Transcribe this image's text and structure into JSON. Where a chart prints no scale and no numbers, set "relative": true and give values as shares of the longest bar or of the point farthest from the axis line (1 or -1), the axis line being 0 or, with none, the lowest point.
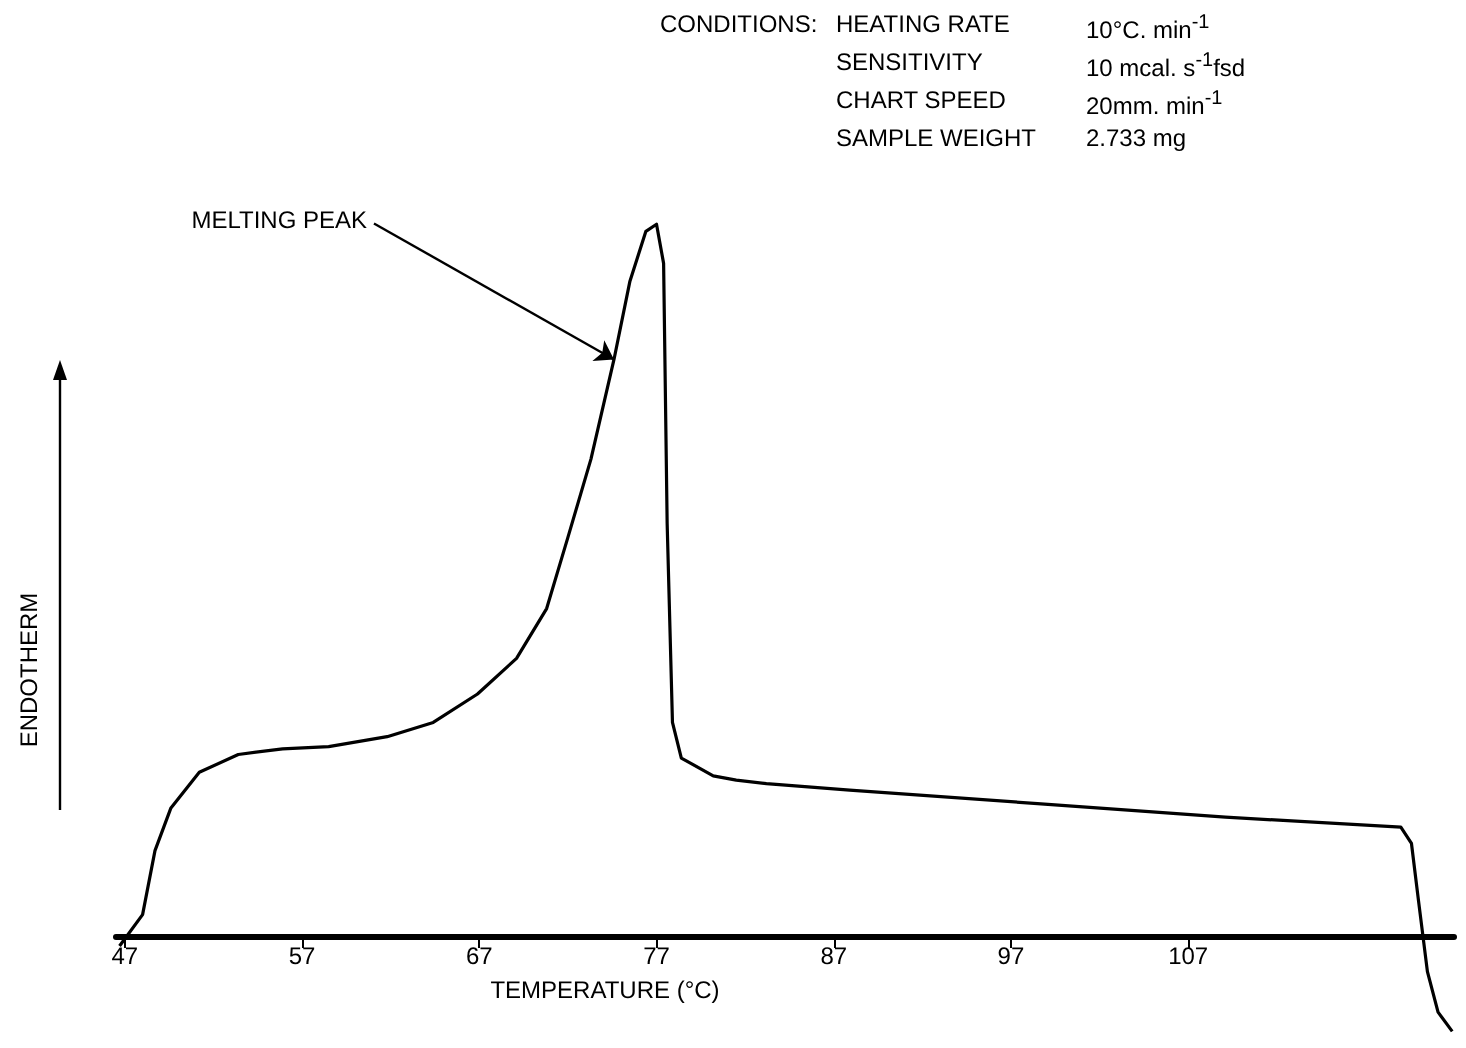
{
  "chart_data": {
    "type": "line",
    "relative": true,
    "xlabel": "TEMPERATURE (°C)",
    "ylabel": "ENDOTHERM",
    "x": [
      46.7,
      48.0,
      48.7,
      49.6,
      51.2,
      53.4,
      55.9,
      58.5,
      61.8,
      64.4,
      66.9,
      69.1,
      70.8,
      72.0,
      73.3,
      74.6,
      75.5,
      76.4,
      77.0,
      77.4,
      77.6,
      77.9,
      78.4,
      80.2,
      81.5,
      83.2,
      87.9,
      98.5,
      109.1,
      119.0,
      119.6,
      120.0,
      120.5,
      121.1,
      121.9
    ],
    "series": [
      {
        "color": "#000000",
        "values": [
          -0.014,
          0.03,
          0.12,
          0.18,
          0.23,
          0.255,
          0.263,
          0.266,
          0.28,
          0.3,
          0.34,
          0.39,
          0.46,
          0.56,
          0.67,
          0.81,
          0.92,
          0.99,
          1.0,
          0.945,
          0.58,
          0.3,
          0.25,
          0.225,
          0.219,
          0.214,
          0.205,
          0.186,
          0.167,
          0.153,
          0.13,
          0.049,
          -0.05,
          -0.107,
          -0.134
        ]
      }
    ],
    "xlim": [
      46.5,
      122
    ],
    "xticks": [
      47,
      57,
      67,
      77,
      87,
      97,
      107
    ],
    "marker": "none",
    "line_style": "solid",
    "annotations": [
      "CONDITIONS:",
      "HEATING RATE",
      "10°C. min$^{-1}$",
      "SENSITIVITY",
      "10 mcal. s$^{-1}$fsd",
      "CHART SPEED",
      "20mm. min$^{-1}$",
      "SAMPLE WEIGHT",
      "2.733 mg",
      {
        "text": "MELTING PEAK",
        "x": 74.6,
        "y": 0.81
      }
    ]
  }
}
